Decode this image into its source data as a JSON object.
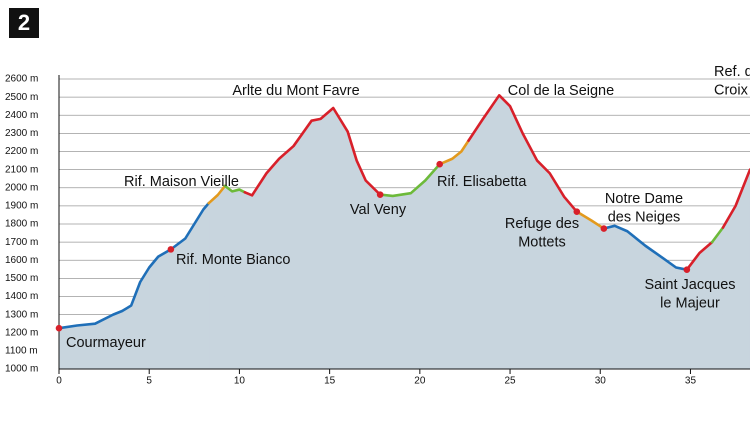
{
  "chart_data": {
    "type": "area",
    "title": "2",
    "xlim": [
      0,
      38.3
    ],
    "xticks": [
      0,
      5,
      10,
      15,
      20,
      25,
      30,
      35
    ],
    "ylim": [
      1000,
      2600
    ],
    "yticks": [
      {
        "value": 1000,
        "label": "1000 m"
      },
      {
        "value": 1100,
        "label": "1100 m"
      },
      {
        "value": 1200,
        "label": "1200 m"
      },
      {
        "value": 1300,
        "label": "1300 m"
      },
      {
        "value": 1400,
        "label": "1400 m"
      },
      {
        "value": 1500,
        "label": "1500 m"
      },
      {
        "value": 1600,
        "label": "1600 m"
      },
      {
        "value": 1700,
        "label": "1700 m"
      },
      {
        "value": 1800,
        "label": "1800 m"
      },
      {
        "value": 1900,
        "label": "1900 m"
      },
      {
        "value": 2000,
        "label": "2000 m"
      },
      {
        "value": 2100,
        "label": "2100 m"
      },
      {
        "value": 2200,
        "label": "2200 m"
      },
      {
        "value": 2300,
        "label": "2300 m"
      },
      {
        "value": 2400,
        "label": "2400 m"
      },
      {
        "value": 2500,
        "label": "2500 m"
      },
      {
        "value": 2600,
        "label": "2600 m"
      }
    ],
    "grid": true,
    "area_color": "#c8d5de",
    "series": [
      {
        "color": "#1f6fb8",
        "x": [
          0,
          1,
          2,
          3,
          3.5,
          4,
          4.5,
          5,
          5.5,
          6.2,
          7,
          7.5,
          8,
          8.3
        ],
        "values": [
          1225,
          1240,
          1250,
          1300,
          1320,
          1350,
          1480,
          1560,
          1620,
          1660,
          1720,
          1800,
          1880,
          1915
        ]
      },
      {
        "color": "#e39a1e",
        "x": [
          8.3,
          8.8,
          9.2
        ],
        "values": [
          1915,
          1960,
          2010
        ]
      },
      {
        "color": "#6dba3a",
        "x": [
          9.2,
          9.6,
          10.0,
          10.3
        ],
        "values": [
          2010,
          1980,
          1990,
          1975
        ]
      },
      {
        "color": "#d8202a",
        "x": [
          10.3,
          10.7,
          11.5,
          12.2,
          13,
          14,
          14.5,
          15.2,
          16,
          16.5,
          17,
          17.8
        ],
        "values": [
          1975,
          1958,
          2080,
          2160,
          2230,
          2370,
          2380,
          2440,
          2310,
          2150,
          2040,
          1962
        ]
      },
      {
        "color": "#6dba3a",
        "x": [
          17.8,
          18.5,
          19.5,
          20.3,
          21.1
        ],
        "values": [
          1962,
          1955,
          1970,
          2040,
          2130
        ]
      },
      {
        "color": "#e39a1e",
        "x": [
          21.1,
          21.8,
          22.3,
          22.7
        ],
        "values": [
          2130,
          2160,
          2200,
          2260
        ]
      },
      {
        "color": "#d8202a",
        "x": [
          22.7,
          23.5,
          24.4,
          25,
          25.7,
          26.5,
          27.2,
          28,
          28.7
        ],
        "values": [
          2260,
          2380,
          2510,
          2450,
          2300,
          2150,
          2080,
          1950,
          1868
        ]
      },
      {
        "color": "#e39a1e",
        "x": [
          28.7,
          29.5,
          30.2
        ],
        "values": [
          1868,
          1820,
          1775
        ]
      },
      {
        "color": "#1f6fb8",
        "x": [
          30.2,
          30.8,
          31.5,
          32.5,
          33.5,
          34.2,
          34.8
        ],
        "values": [
          1775,
          1790,
          1760,
          1680,
          1610,
          1560,
          1548
        ]
      },
      {
        "color": "#d8202a",
        "x": [
          34.8,
          35.5,
          36.2
        ],
        "values": [
          1548,
          1640,
          1700
        ]
      },
      {
        "color": "#6dba3a",
        "x": [
          36.2,
          36.8
        ],
        "values": [
          1700,
          1780
        ]
      },
      {
        "color": "#d8202a",
        "x": [
          36.8,
          37.5,
          38.3
        ],
        "values": [
          1780,
          1900,
          2100
        ]
      }
    ],
    "annotations": [
      {
        "text": [
          "Courmayeur"
        ],
        "x": 0,
        "y": 1225
      },
      {
        "text": [
          "Rif. Monte Bianco"
        ],
        "x": 6.2,
        "y": 1660
      },
      {
        "text": [
          "Rif. Maison Vieille"
        ]
      },
      {
        "text": [
          "Arlte du Mont Favre"
        ]
      },
      {
        "text": [
          "Val Veny"
        ],
        "x": 17.8,
        "y": 1962
      },
      {
        "text": [
          "Rif. Elisabetta"
        ],
        "x": 21.1,
        "y": 2130
      },
      {
        "text": [
          "Col de la Seigne"
        ]
      },
      {
        "text": [
          "Refuge des",
          "Mottets"
        ],
        "x": 28.7,
        "y": 1868
      },
      {
        "text": [
          "Notre Dame",
          "des Neiges"
        ],
        "x": 30.2,
        "y": 1775
      },
      {
        "text": [
          "Saint Jacques",
          "le Majeur"
        ],
        "x": 34.8,
        "y": 1548
      },
      {
        "text": [
          "Ref. d",
          "Croix"
        ]
      }
    ]
  }
}
